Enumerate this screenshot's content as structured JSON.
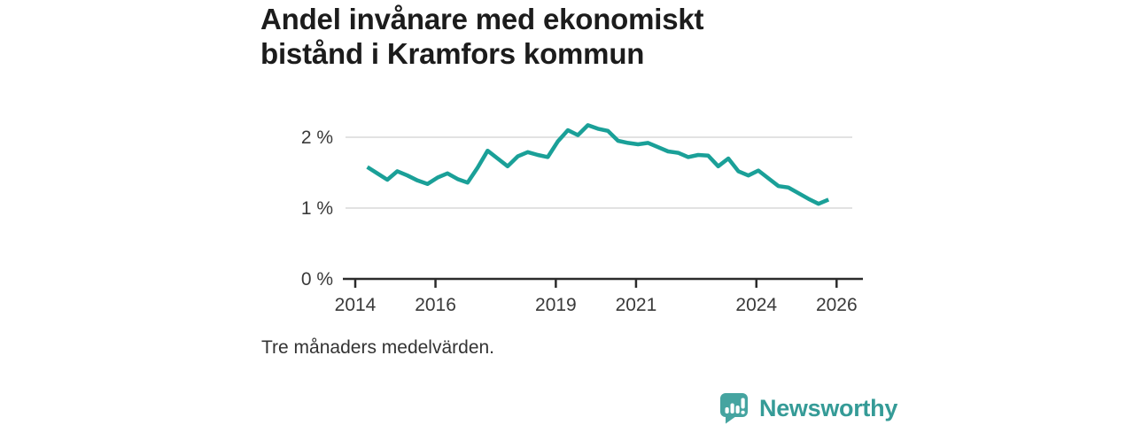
{
  "title": "Andel invånare med ekonomiskt bistånd i Kramfors kommun",
  "footnote": "Tre månaders medelvärden.",
  "branding": {
    "logo_text": "Newsworthy",
    "logo_icon": "bar-chart-speech-bubble"
  },
  "colors": {
    "line": "#1aa098",
    "grid": "#d9d9d9",
    "axis": "#2b2b2b",
    "title_text": "#1c1c1c",
    "label_text": "#3a3a3a",
    "brand": "#359b97",
    "background": "#ffffff"
  },
  "chart_data": {
    "type": "line",
    "title": "Andel invånare med ekonomiskt bistånd i Kramfors kommun",
    "subtitle": "Tre månaders medelvärden.",
    "unit": "%",
    "xlabel": "",
    "ylabel": "",
    "grid": "horizontal",
    "legend": "none",
    "xlim": [
      2013.7,
      2026.6
    ],
    "ylim": [
      0,
      2.5
    ],
    "x_ticks": [
      2014,
      2016,
      2019,
      2021,
      2024,
      2026
    ],
    "y_ticks": [
      {
        "value": 2,
        "label": "2 %"
      },
      {
        "value": 1,
        "label": "1 %"
      },
      {
        "value": 0,
        "label": "0 %"
      }
    ],
    "series_name": "Andel invånare med ekonomiskt bistånd (%)",
    "x": [
      2014.3,
      2014.55,
      2014.8,
      2015.05,
      2015.3,
      2015.55,
      2015.8,
      2016.05,
      2016.3,
      2016.55,
      2016.8,
      2017.05,
      2017.3,
      2017.55,
      2017.8,
      2018.05,
      2018.3,
      2018.55,
      2018.8,
      2019.05,
      2019.3,
      2019.55,
      2019.8,
      2020.05,
      2020.3,
      2020.55,
      2020.8,
      2021.05,
      2021.3,
      2021.55,
      2021.8,
      2022.05,
      2022.3,
      2022.55,
      2022.8,
      2023.05,
      2023.3,
      2023.55,
      2023.8,
      2024.05,
      2024.3,
      2024.55,
      2024.8,
      2025.05,
      2025.3,
      2025.55,
      2025.8
    ],
    "values": [
      1.58,
      1.49,
      1.4,
      1.52,
      1.46,
      1.39,
      1.34,
      1.43,
      1.49,
      1.41,
      1.36,
      1.57,
      1.81,
      1.7,
      1.59,
      1.73,
      1.79,
      1.75,
      1.72,
      1.94,
      2.1,
      2.03,
      2.17,
      2.12,
      2.09,
      1.95,
      1.92,
      1.9,
      1.92,
      1.86,
      1.8,
      1.78,
      1.72,
      1.75,
      1.74,
      1.59,
      1.7,
      1.52,
      1.46,
      1.53,
      1.42,
      1.31,
      1.29,
      1.21,
      1.13,
      1.06,
      1.12
    ]
  }
}
